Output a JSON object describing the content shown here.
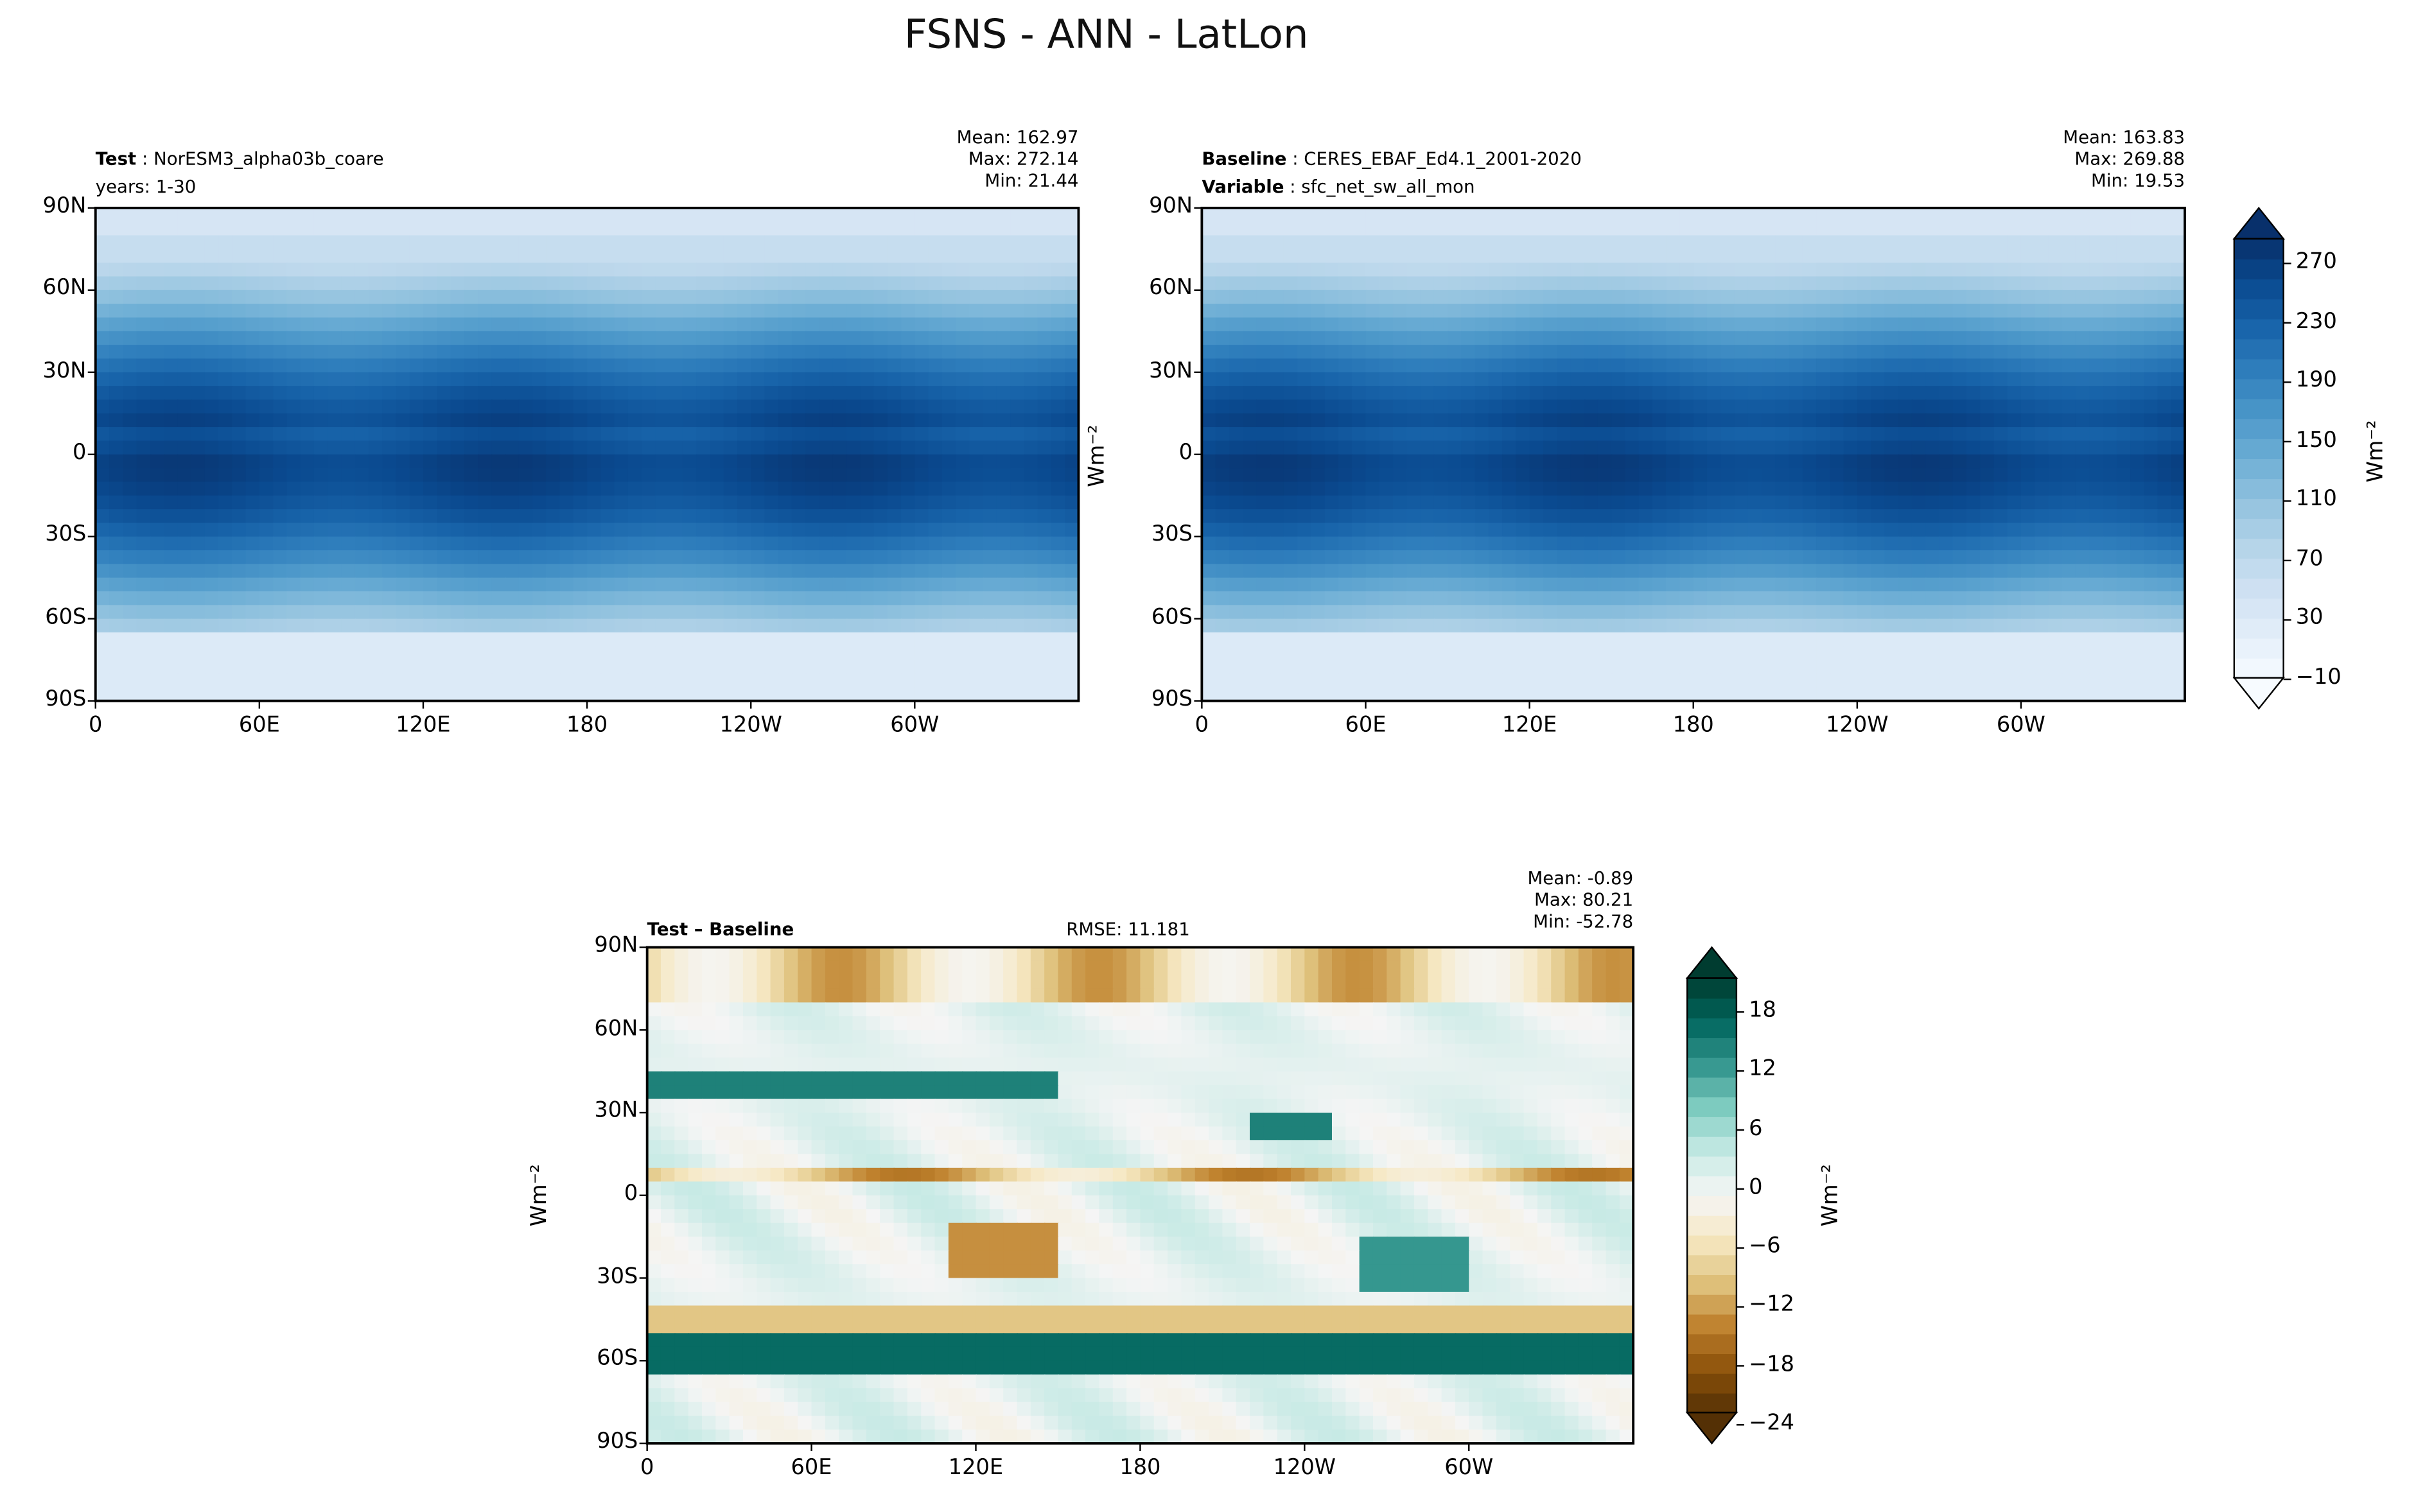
{
  "title": "FSNS - ANN - LatLon",
  "chart_data": [
    {
      "type": "heatmap",
      "panel": "test",
      "label_bold": "Test",
      "label": "NorESM3_alpha03b_coare",
      "sub": "years: 1-30",
      "stats": {
        "mean": "Mean: 162.97",
        "max": "Max: 272.14",
        "min": "Min: 21.44"
      },
      "yticks": [
        "90N",
        "60N",
        "30N",
        "0",
        "30S",
        "60S",
        "90S"
      ],
      "xticks": [
        "0",
        "60E",
        "120E",
        "180",
        "120W",
        "60W"
      ],
      "xlim": [
        0,
        360
      ],
      "ylim": [
        -90,
        90
      ]
    },
    {
      "type": "heatmap",
      "panel": "baseline",
      "label_bold": "Baseline",
      "label": "CERES_EBAF_Ed4.1_2001-2020",
      "sub_bold": "Variable",
      "sub": "sfc_net_sw_all_mon",
      "stats": {
        "mean": "Mean: 163.83",
        "max": "Max: 269.88",
        "min": "Min: 19.53"
      },
      "yticks": [
        "90N",
        "60N",
        "30N",
        "0",
        "30S",
        "60S",
        "90S"
      ],
      "xticks": [
        "0",
        "60E",
        "120E",
        "180",
        "120W",
        "60W"
      ],
      "ylabel": "Wm⁻²",
      "xlim": [
        0,
        360
      ],
      "ylim": [
        -90,
        90
      ]
    },
    {
      "type": "heatmap",
      "panel": "difference",
      "label_bold": "Test – Baseline",
      "rmse": "RMSE: 11.181",
      "stats": {
        "mean": "Mean: -0.89",
        "max": "Max: 80.21",
        "min": "Min: -52.78"
      },
      "yticks": [
        "90N",
        "60N",
        "30N",
        "0",
        "30S",
        "60S",
        "90S"
      ],
      "xticks": [
        "0",
        "60E",
        "120E",
        "180",
        "120W",
        "60W"
      ],
      "ylabel": "Wm⁻²",
      "xlim": [
        0,
        360
      ],
      "ylim": [
        -90,
        90
      ]
    }
  ],
  "colorbar_main": {
    "label": "Wm⁻²",
    "ticks": [
      "270",
      "230",
      "190",
      "150",
      "110",
      "70",
      "30",
      "−10"
    ],
    "range": [
      -10,
      290
    ],
    "colors": [
      "#f7fbff",
      "#e3eef9",
      "#cfe1f2",
      "#b5d4e9",
      "#93c3df",
      "#6daed5",
      "#4b97c9",
      "#2f7ebc",
      "#1864aa",
      "#0a4a90",
      "#08306b"
    ]
  },
  "colorbar_diff": {
    "label": "Wm⁻²",
    "ticks": [
      "18",
      "12",
      "6",
      "0",
      "−6",
      "−12",
      "−18",
      "−24"
    ],
    "range": [
      -24,
      21
    ],
    "colors": [
      "#543005",
      "#8c510a",
      "#bf812d",
      "#dfc27d",
      "#f6e8c3",
      "#f5f5f5",
      "#c7eae5",
      "#80cdc1",
      "#35978f",
      "#01665e",
      "#003c30"
    ]
  }
}
